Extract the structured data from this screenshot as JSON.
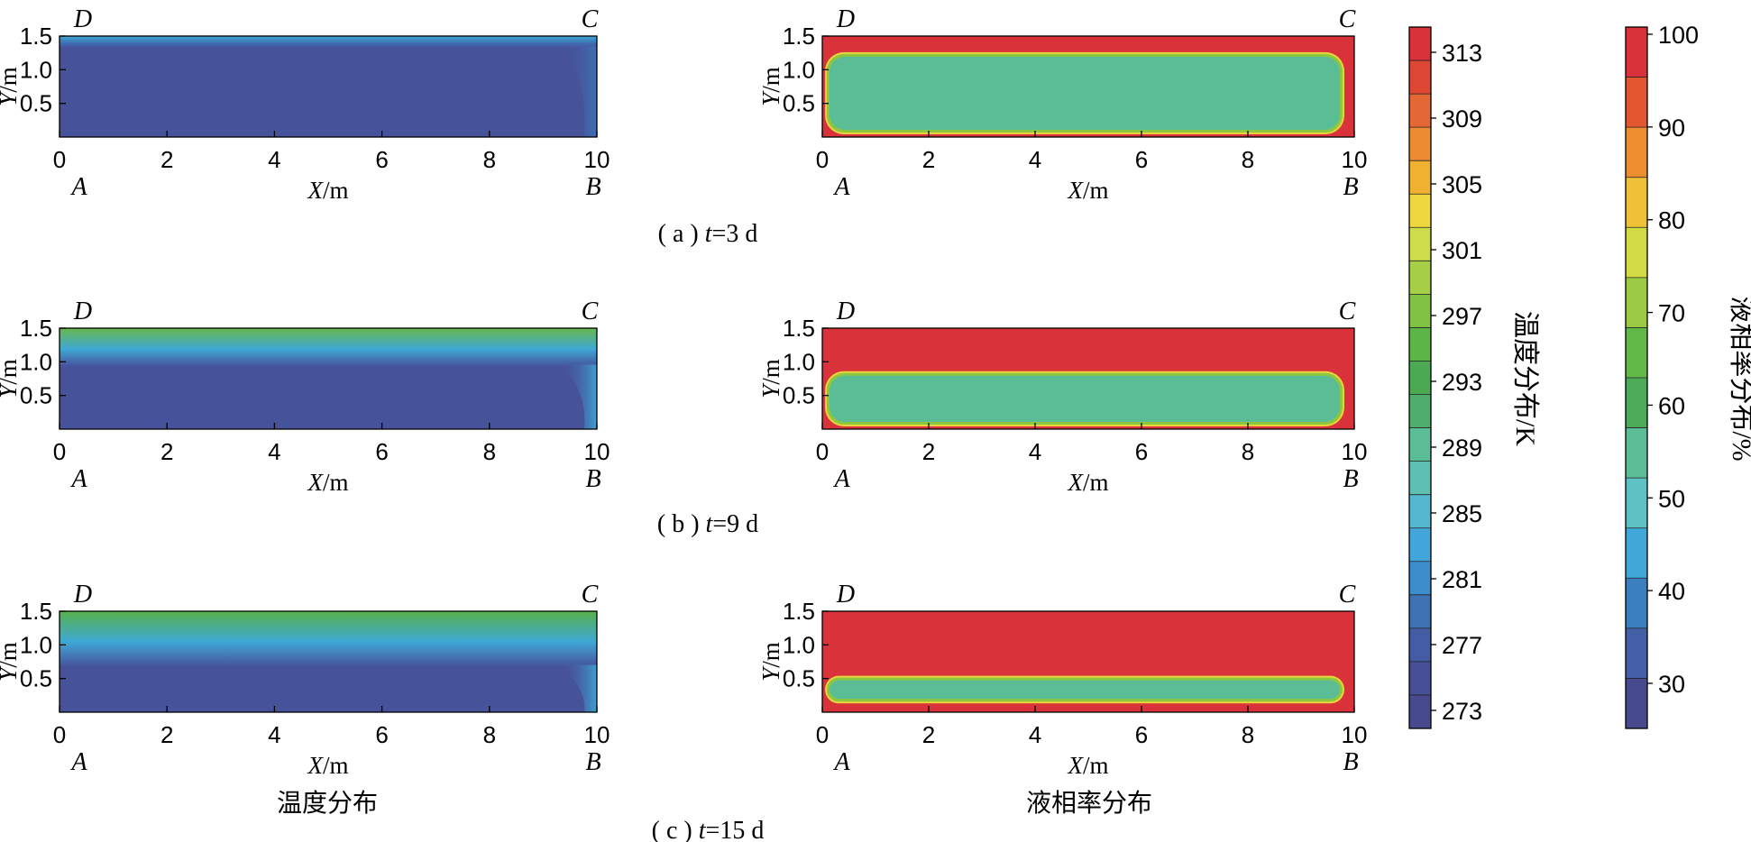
{
  "chart_data": [
    {
      "type": "heatmap",
      "id": "temp-3d",
      "quantity": "temperature",
      "ylabels": [
        "0.5",
        "1.0",
        "1.5"
      ],
      "xticks": [
        "0",
        "2",
        "4",
        "6",
        "8",
        "10"
      ],
      "xlim": [
        0,
        10
      ],
      "ylim": [
        0,
        1.5
      ],
      "xlabel_italic": "X",
      "xlabel_unit": "/m",
      "ylabel_italic": "Y",
      "ylabel_unit": "/m",
      "corners": {
        "A": "A",
        "B": "B",
        "C": "C",
        "D": "D"
      },
      "colors": {
        "background": "#46529a",
        "top": "#3fa8d6",
        "mid": "#3e72b4"
      },
      "band_fraction": 0.12
    },
    {
      "type": "heatmap",
      "id": "liquid-3d",
      "quantity": "liquid fraction",
      "ylabels": [
        "0.5",
        "1.0",
        "1.5"
      ],
      "xticks": [
        "0",
        "2",
        "4",
        "6",
        "8",
        "10"
      ],
      "xlim": [
        0,
        10
      ],
      "ylim": [
        0,
        1.5
      ],
      "xlabel_italic": "X",
      "xlabel_unit": "/m",
      "ylabel_italic": "Y",
      "ylabel_unit": "/m",
      "corners": {
        "A": "A",
        "B": "B",
        "C": "C",
        "D": "D"
      },
      "colors": {
        "outer": "#d9323a",
        "inner": "#5bbd96",
        "edge": "#8ec63f"
      },
      "inner_y_range": [
        0.08,
        1.22
      ]
    },
    {
      "type": "heatmap",
      "id": "temp-9d",
      "quantity": "temperature",
      "ylabels": [
        "0.5",
        "1.0",
        "1.5"
      ],
      "xticks": [
        "0",
        "2",
        "4",
        "6",
        "8",
        "10"
      ],
      "xlim": [
        0,
        10
      ],
      "ylim": [
        0,
        1.5
      ],
      "xlabel_italic": "X",
      "xlabel_unit": "/m",
      "ylabel_italic": "Y",
      "ylabel_unit": "/m",
      "corners": {
        "A": "A",
        "B": "B",
        "C": "C",
        "D": "D"
      },
      "colors": {
        "background": "#46529a",
        "top": "#67b84a",
        "mid": "#3fa8d6"
      },
      "band_fraction": 0.38
    },
    {
      "type": "heatmap",
      "id": "liquid-9d",
      "quantity": "liquid fraction",
      "ylabels": [
        "0.5",
        "1.0",
        "1.5"
      ],
      "xticks": [
        "0",
        "2",
        "4",
        "6",
        "8",
        "10"
      ],
      "xlim": [
        0,
        10
      ],
      "ylim": [
        0,
        1.5
      ],
      "xlabel_italic": "X",
      "xlabel_unit": "/m",
      "ylabel_italic": "Y",
      "ylabel_unit": "/m",
      "corners": {
        "A": "A",
        "B": "B",
        "C": "C",
        "D": "D"
      },
      "colors": {
        "outer": "#d9323a",
        "inner": "#5bbd96",
        "edge": "#8ec63f"
      },
      "inner_y_range": [
        0.08,
        0.82
      ]
    },
    {
      "type": "heatmap",
      "id": "temp-15d",
      "quantity": "temperature",
      "ylabels": [
        "0.5",
        "1.0",
        "1.5"
      ],
      "xticks": [
        "0",
        "2",
        "4",
        "6",
        "8",
        "10"
      ],
      "xlim": [
        0,
        10
      ],
      "ylim": [
        0,
        1.5
      ],
      "xlabel_italic": "X",
      "xlabel_unit": "/m",
      "ylabel_italic": "Y",
      "ylabel_unit": "/m",
      "corners": {
        "A": "A",
        "B": "B",
        "C": "C",
        "D": "D"
      },
      "colors": {
        "background": "#46529a",
        "top": "#55b24a",
        "mid": "#3fa8d6"
      },
      "band_fraction": 0.55
    },
    {
      "type": "heatmap",
      "id": "liquid-15d",
      "quantity": "liquid fraction",
      "ylabels": [
        "0.5",
        "1.0",
        "1.5"
      ],
      "xticks": [
        "0",
        "2",
        "4",
        "6",
        "8",
        "10"
      ],
      "xlim": [
        0,
        10
      ],
      "ylim": [
        0,
        1.5
      ],
      "xlabel_italic": "X",
      "xlabel_unit": "/m",
      "ylabel_italic": "Y",
      "ylabel_unit": "/m",
      "corners": {
        "A": "A",
        "B": "B",
        "C": "C",
        "D": "D"
      },
      "colors": {
        "outer": "#d9323a",
        "inner": "#5bbd96",
        "edge": "#8ec63f"
      },
      "inner_y_range": [
        0.17,
        0.5
      ]
    }
  ],
  "captions": {
    "a_prefix": "( a ) ",
    "a_t": "t",
    "a_suffix": "=3 d",
    "b_prefix": "( b ) ",
    "b_t": "t",
    "b_suffix": "=9 d",
    "c_prefix": "( c ) ",
    "c_t": "t",
    "c_suffix": "=15 d",
    "col_left": "温度分布",
    "col_right": "液相率分布"
  },
  "colorbars": {
    "temperature": {
      "title": "温度分布/K",
      "ticks": [
        "313",
        "309",
        "305",
        "301",
        "297",
        "293",
        "289",
        "285",
        "281",
        "277",
        "273"
      ],
      "colors": [
        "#d9323a",
        "#dd4733",
        "#e46833",
        "#eb8c32",
        "#f0b130",
        "#eed83d",
        "#cddc4a",
        "#a6ce46",
        "#7fc244",
        "#5cb647",
        "#4aa952",
        "#4fad6b",
        "#5bbd96",
        "#5ec0b3",
        "#55b8cf",
        "#42a6db",
        "#3d8dcc",
        "#3f72b5",
        "#435ca4",
        "#465099",
        "#474a8e"
      ]
    },
    "liquid": {
      "title": "液相率分布/%",
      "ticks": [
        "100",
        "90",
        "80",
        "70",
        "60",
        "50",
        "40",
        "30"
      ],
      "colors": [
        "#d9323a",
        "#e2572f",
        "#ec8e30",
        "#eec136",
        "#d1dc45",
        "#9cca44",
        "#63b947",
        "#4caa58",
        "#5bbd96",
        "#5ec2c4",
        "#3fa8d9",
        "#3c7fc0",
        "#4460a7",
        "#474a8e"
      ]
    }
  }
}
